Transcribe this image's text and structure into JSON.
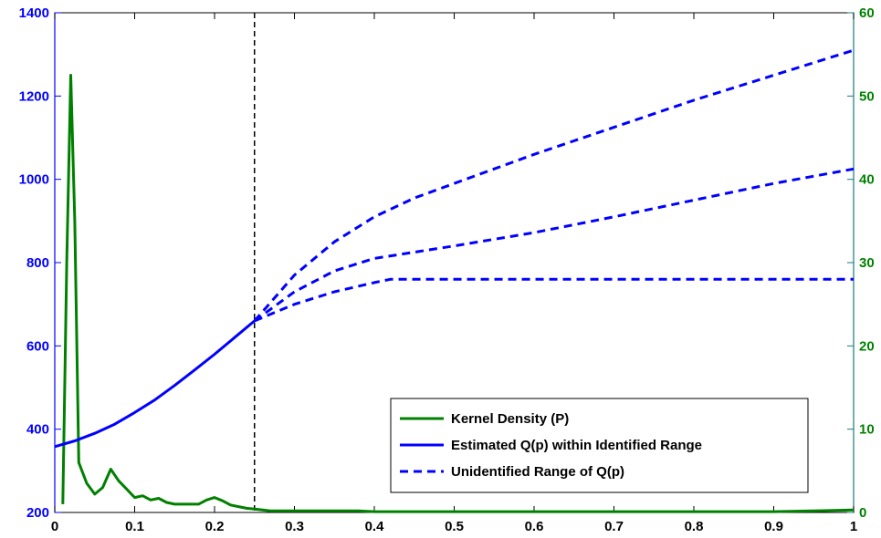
{
  "chart_data": {
    "type": "line",
    "title": "",
    "xlabel": "",
    "ylabel_left": "",
    "ylabel_right": "",
    "xlim": [
      0,
      1
    ],
    "ylim_left": [
      200,
      1400
    ],
    "ylim_right": [
      0,
      60
    ],
    "x_ticks": [
      0,
      0.1,
      0.2,
      0.3,
      0.4,
      0.5,
      0.6,
      0.7,
      0.8,
      0.9,
      1
    ],
    "x_tick_labels": [
      "0",
      "0.1",
      "0.2",
      "0.3",
      "0.4",
      "0.5",
      "0.6",
      "0.7",
      "0.8",
      "0.9",
      "1"
    ],
    "y_left_ticks": [
      200,
      400,
      600,
      800,
      1000,
      1200,
      1400
    ],
    "y_left_tick_labels": [
      "200",
      "400",
      "600",
      "800",
      "1000",
      "1200",
      "1400"
    ],
    "y_right_ticks": [
      0,
      10,
      20,
      30,
      40,
      50,
      60
    ],
    "y_right_tick_labels": [
      "0",
      "10",
      "20",
      "30",
      "40",
      "50",
      "60"
    ],
    "grid": false,
    "legend_position": "bottom-right",
    "vertical_reference_line": {
      "x": 0.25,
      "style": "dashed",
      "color": "#000000"
    },
    "colors": {
      "density": "#008000",
      "estimated": "#0000ff",
      "unidentified": "#0000ff",
      "left_axis": "#0000ff",
      "right_axis": "#008000"
    },
    "series": [
      {
        "name": "Kernel Density (P)",
        "axis": "right",
        "style": "solid",
        "color": "#008000",
        "x": [
          0.01,
          0.015,
          0.02,
          0.025,
          0.03,
          0.04,
          0.05,
          0.06,
          0.07,
          0.08,
          0.09,
          0.1,
          0.11,
          0.12,
          0.13,
          0.14,
          0.15,
          0.16,
          0.17,
          0.18,
          0.19,
          0.2,
          0.21,
          0.22,
          0.23,
          0.24,
          0.25,
          0.26,
          0.27,
          0.3,
          0.35,
          0.38,
          0.4,
          0.45,
          0.5,
          0.55,
          0.6,
          0.65,
          0.7,
          0.75,
          0.8,
          0.85,
          0.9,
          0.95,
          1
        ],
        "y": [
          1,
          30,
          52.5,
          35,
          6,
          3.5,
          2.2,
          3,
          5.2,
          3.8,
          2.8,
          1.8,
          2,
          1.5,
          1.7,
          1.2,
          1,
          1,
          1,
          1,
          1.5,
          1.8,
          1.4,
          0.9,
          0.7,
          0.5,
          0.4,
          0.3,
          0.2,
          0.2,
          0.2,
          0.2,
          0.1,
          0.1,
          0.1,
          0.1,
          0.1,
          0.1,
          0.1,
          0.1,
          0.1,
          0.1,
          0.1,
          0.2,
          0.3
        ]
      },
      {
        "name": "Estimated Q(p) within Identified Range",
        "axis": "left",
        "style": "solid",
        "color": "#0000ff",
        "x": [
          0,
          0.025,
          0.05,
          0.075,
          0.1,
          0.125,
          0.15,
          0.175,
          0.2,
          0.225,
          0.25
        ],
        "y": [
          358,
          372,
          390,
          412,
          440,
          470,
          505,
          542,
          580,
          620,
          660
        ]
      },
      {
        "name": "Unidentified Range of Q(p)",
        "axis": "left",
        "style": "dashed",
        "color": "#0000ff",
        "x": [
          0.25,
          0.3,
          0.35,
          0.4,
          0.45,
          0.5,
          0.6,
          0.7,
          0.8,
          0.9,
          1
        ],
        "y": [
          660,
          770,
          850,
          910,
          955,
          990,
          1060,
          1125,
          1190,
          1250,
          1310
        ]
      },
      {
        "name": "",
        "axis": "left",
        "style": "dashed",
        "color": "#0000ff",
        "x": [
          0.25,
          0.3,
          0.35,
          0.4,
          0.5,
          0.6,
          0.7,
          0.8,
          0.9,
          1
        ],
        "y": [
          660,
          730,
          780,
          810,
          840,
          872,
          910,
          950,
          990,
          1025
        ]
      },
      {
        "name": "",
        "axis": "left",
        "style": "dashed",
        "color": "#0000ff",
        "x": [
          0.25,
          0.3,
          0.35,
          0.4,
          0.42,
          0.5,
          0.6,
          0.7,
          0.8,
          0.9,
          1
        ],
        "y": [
          660,
          700,
          730,
          752,
          760,
          760,
          760,
          760,
          760,
          760,
          760
        ]
      }
    ],
    "legend": [
      {
        "label": "Kernel Density (P)",
        "style": "solid",
        "color": "#008000"
      },
      {
        "label": "Estimated Q(p) within Identified Range",
        "style": "solid",
        "color": "#0000ff"
      },
      {
        "label": "Unidentified Range of Q(p)",
        "style": "dashed",
        "color": "#0000ff"
      }
    ]
  }
}
